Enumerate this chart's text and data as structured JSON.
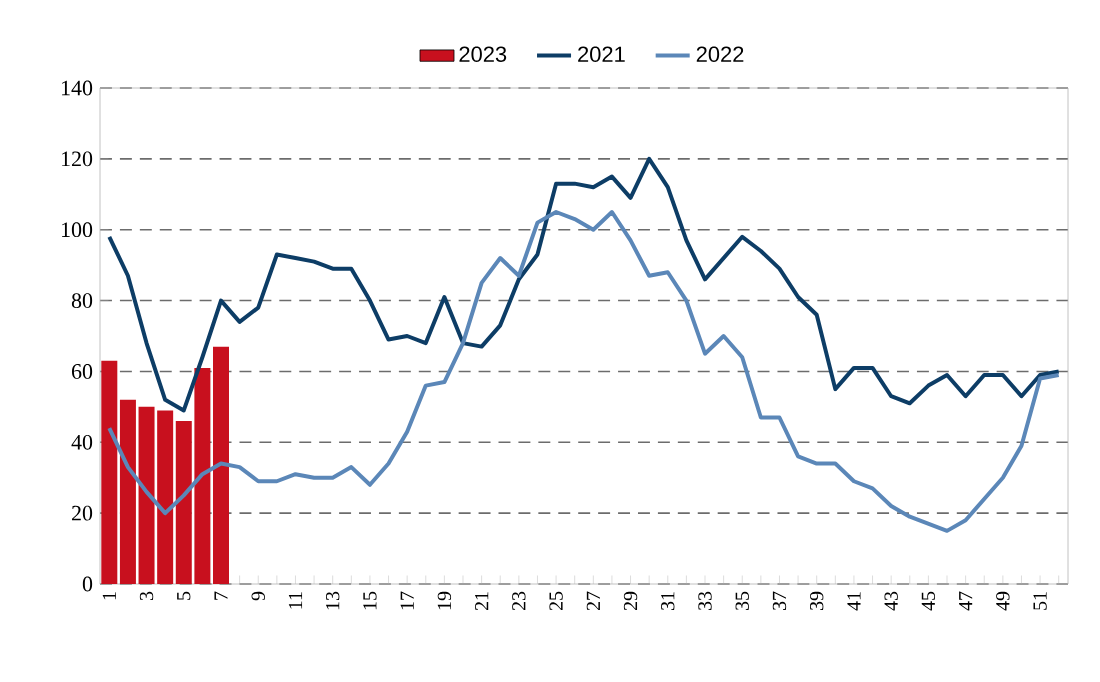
{
  "chart_data": {
    "type": "bar",
    "categories": [
      "1",
      null,
      "3",
      null,
      "5",
      null,
      "7",
      null,
      "9",
      null,
      "11",
      null,
      "13",
      null,
      "15",
      null,
      "17",
      null,
      "19",
      null,
      "21",
      null,
      "23",
      null,
      "25",
      null,
      "27",
      null,
      "29",
      null,
      "31",
      null,
      "33",
      null,
      "35",
      null,
      "37",
      null,
      "39",
      null,
      "41",
      null,
      "43",
      null,
      "45",
      null,
      "47",
      null,
      "49",
      null,
      "51",
      null
    ],
    "series": [
      {
        "name": "2023",
        "color": "#c8101e",
        "values": [
          63,
          52,
          50,
          49,
          46,
          61,
          67,
          null,
          null,
          null,
          null,
          null,
          null,
          null,
          null,
          null,
          null,
          null,
          null,
          null,
          null,
          null,
          null,
          null,
          null,
          null,
          null,
          null,
          null,
          null,
          null,
          null,
          null,
          null,
          null,
          null,
          null,
          null,
          null,
          null,
          null,
          null,
          null,
          null,
          null,
          null,
          null,
          null,
          null,
          null,
          null,
          null
        ]
      },
      {
        "name": "2021",
        "type": "line",
        "color": "#0d3d66",
        "values": [
          98,
          87,
          68,
          52,
          49,
          64,
          80,
          74,
          78,
          93,
          92,
          91,
          89,
          89,
          80,
          69,
          70,
          68,
          81,
          68,
          67,
          73,
          86,
          93,
          113,
          113,
          112,
          115,
          109,
          120,
          112,
          97,
          86,
          92,
          98,
          94,
          89,
          81,
          76,
          55,
          61,
          61,
          53,
          51,
          56,
          59,
          53,
          59,
          59,
          53,
          59,
          60
        ]
      },
      {
        "name": "2022",
        "type": "line",
        "color": "#5b87b8",
        "values": [
          44,
          33,
          26,
          20,
          25,
          31,
          34,
          33,
          29,
          29,
          31,
          30,
          30,
          33,
          28,
          34,
          43,
          56,
          57,
          68,
          85,
          92,
          87,
          102,
          105,
          103,
          100,
          105,
          97,
          87,
          88,
          80,
          65,
          70,
          64,
          47,
          47,
          36,
          34,
          34,
          29,
          27,
          22,
          19,
          17,
          15,
          18,
          24,
          30,
          39,
          58,
          59
        ]
      }
    ],
    "ylim": [
      0,
      140
    ],
    "yticks": [
      0,
      20,
      40,
      60,
      80,
      100,
      120,
      140
    ],
    "grid": "y",
    "legend": "top",
    "line_style": "solid",
    "marker": "none"
  }
}
